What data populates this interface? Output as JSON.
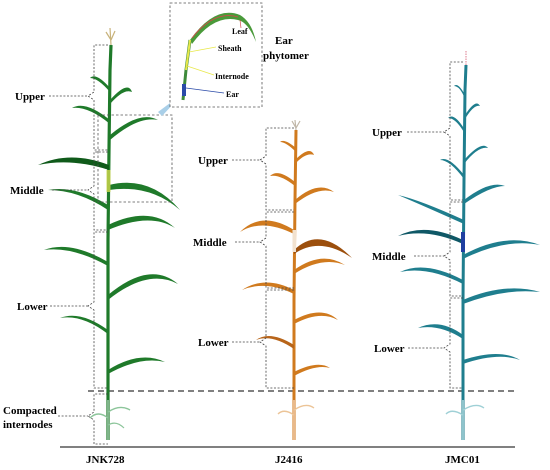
{
  "colors": {
    "jnk728": "#1f7a2a",
    "jnk728_dark": "#0f5a1a",
    "j2416": "#d07a1e",
    "j2416_dark": "#9c4f0d",
    "jmc01": "#1f7e8e",
    "jmc01_dark": "#0f5866",
    "ear_blue": "#1f3fa0",
    "pointer": "#a9cfe8"
  },
  "plants": [
    {
      "id": "jnk728",
      "label": "JNK728"
    },
    {
      "id": "j2416",
      "label": "J2416"
    },
    {
      "id": "jmc01",
      "label": "JMC01"
    }
  ],
  "segments": {
    "jnk728": [
      "Upper",
      "Middle",
      "Lower"
    ],
    "j2416": [
      "Upper",
      "Middle",
      "Lower"
    ],
    "jmc01": [
      "Upper",
      "Middle",
      "Lower"
    ]
  },
  "compacted": {
    "line1": "Compacted",
    "line2": "internodes"
  },
  "inset": {
    "parts": [
      "Leaf",
      "Sheath",
      "Internode",
      "Ear"
    ],
    "title_line1": "Ear",
    "title_line2": "phytomer"
  }
}
